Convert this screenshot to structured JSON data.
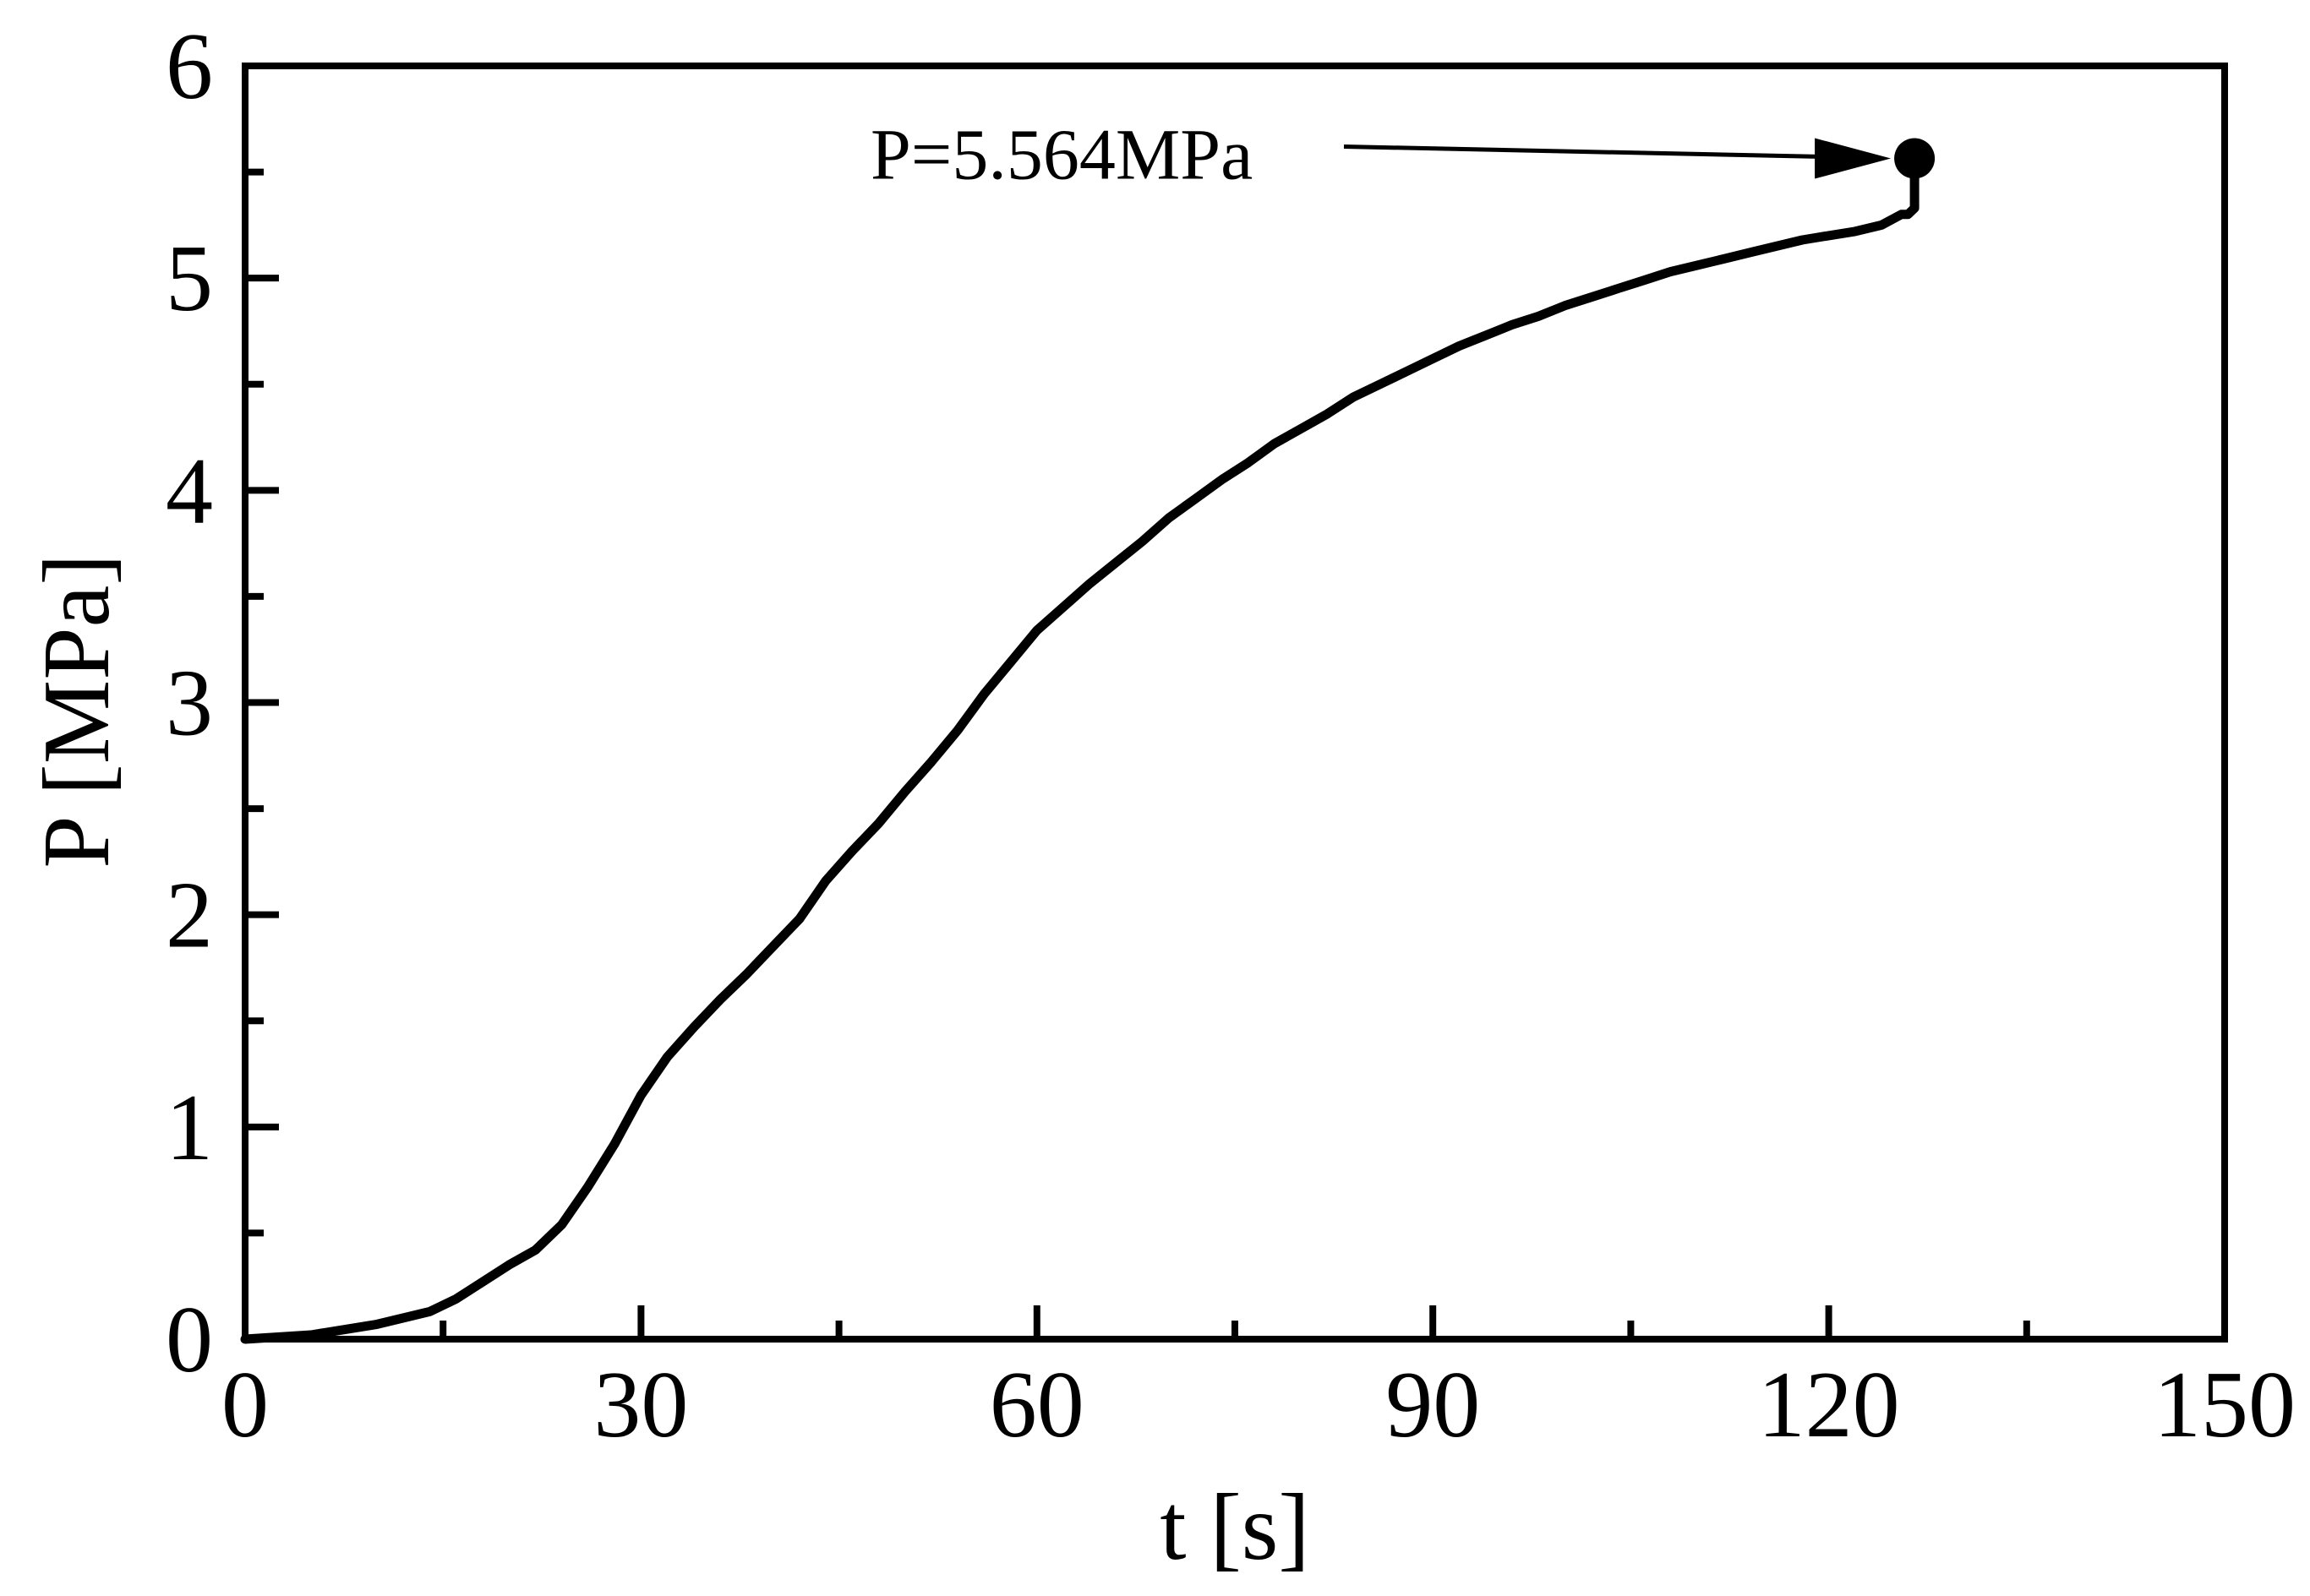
{
  "chart_data": {
    "type": "line",
    "title": "",
    "xlabel": "t [s]",
    "ylabel": "P [MPa]",
    "xlim": [
      0,
      150
    ],
    "ylim": [
      0,
      6
    ],
    "x_ticks": [
      0,
      30,
      60,
      90,
      120,
      150
    ],
    "x_tick_labels": [
      "0",
      "30",
      "60",
      "90",
      "120",
      "150"
    ],
    "x_minor_ticks": [
      15,
      45,
      75,
      105,
      135
    ],
    "y_ticks": [
      0,
      1,
      2,
      3,
      4,
      5,
      6
    ],
    "y_tick_labels": [
      "0",
      "1",
      "2",
      "3",
      "4",
      "5",
      "6"
    ],
    "y_minor_ticks": [
      0.5,
      1.5,
      2.5,
      3.5,
      4.5,
      5.5
    ],
    "grid": false,
    "legend": "none",
    "line_color": "#000000",
    "series": [
      {
        "x": [
          0,
          5,
          10,
          14,
          16,
          18,
          20,
          22,
          24,
          26,
          28,
          30,
          32,
          34,
          36,
          38,
          40,
          42,
          44,
          46,
          48,
          50,
          52,
          54,
          56,
          58,
          60,
          62,
          64,
          66,
          68,
          70,
          72,
          74,
          76,
          78,
          80,
          82,
          84,
          86,
          88,
          90,
          92,
          94,
          96,
          98,
          100,
          102,
          104,
          106,
          108,
          110,
          112,
          114,
          116,
          118,
          120,
          122,
          124,
          125.5,
          126,
          126.5,
          126.5
        ],
        "y": [
          0,
          0.02,
          0.07,
          0.13,
          0.19,
          0.27,
          0.35,
          0.42,
          0.54,
          0.72,
          0.92,
          1.15,
          1.33,
          1.47,
          1.6,
          1.72,
          1.85,
          1.98,
          2.16,
          2.3,
          2.43,
          2.58,
          2.72,
          2.87,
          3.04,
          3.19,
          3.34,
          3.45,
          3.56,
          3.66,
          3.76,
          3.87,
          3.96,
          4.05,
          4.13,
          4.22,
          4.29,
          4.36,
          4.44,
          4.5,
          4.56,
          4.62,
          4.68,
          4.73,
          4.78,
          4.82,
          4.87,
          4.91,
          4.95,
          4.99,
          5.03,
          5.06,
          5.09,
          5.12,
          5.15,
          5.18,
          5.2,
          5.22,
          5.25,
          5.3,
          5.3,
          5.33,
          5.48
        ]
      }
    ],
    "peak_point": {
      "x": 126.5,
      "y": 5.564
    },
    "annotations": [
      {
        "text": "P=5.564MPa",
        "x": 126.5,
        "y": 5.564
      }
    ]
  }
}
